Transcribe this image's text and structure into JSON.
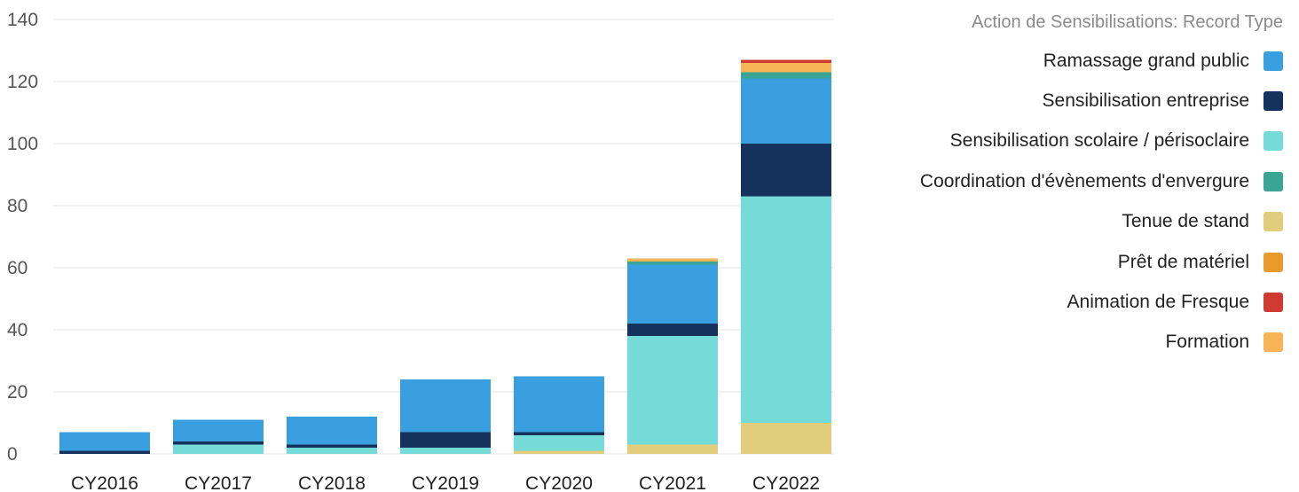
{
  "chart_data": {
    "type": "bar",
    "stacked": true,
    "legend_title": "Action de Sensibilisations: Record Type",
    "legend_position": "right",
    "grid": true,
    "ylim": [
      0,
      140
    ],
    "yticks": [
      0,
      20,
      40,
      60,
      80,
      100,
      120,
      140
    ],
    "categories": [
      "CY2016",
      "CY2017",
      "CY2018",
      "CY2019",
      "CY2020",
      "CY2021",
      "CY2022"
    ],
    "series": [
      {
        "name": "Tenue de stand",
        "color": "#e2cd7d",
        "values": [
          0,
          0,
          0,
          0,
          1,
          3,
          10
        ]
      },
      {
        "name": "Sensibilisation scolaire / périsoclaire",
        "color": "#75dbd8",
        "values": [
          0,
          3,
          2,
          2,
          5,
          35,
          73
        ]
      },
      {
        "name": "Sensibilisation entreprise",
        "color": "#15325c",
        "values": [
          1,
          1,
          1,
          5,
          1,
          4,
          17
        ]
      },
      {
        "name": "Ramassage grand public",
        "color": "#3a9fde",
        "values": [
          6,
          7,
          9,
          17,
          18,
          19,
          21
        ]
      },
      {
        "name": "Coordination d'évènements d'envergure",
        "color": "#3aa594",
        "values": [
          0,
          0,
          0,
          0,
          0,
          1,
          2
        ]
      },
      {
        "name": "Prêt de matériel",
        "color": "#e89a2d",
        "values": [
          0,
          0,
          0,
          0,
          0,
          0,
          0
        ]
      },
      {
        "name": "Formation",
        "color": "#f7b558",
        "values": [
          0,
          0,
          0,
          0,
          0,
          1,
          3
        ]
      },
      {
        "name": "Animation de Fresque",
        "color": "#cf3a33",
        "values": [
          0,
          0,
          0,
          0,
          0,
          0,
          1
        ]
      }
    ],
    "legend_order": [
      "Ramassage grand public",
      "Sensibilisation entreprise",
      "Sensibilisation scolaire / périsoclaire",
      "Coordination d'évènements d'envergure",
      "Tenue de stand",
      "Prêt de matériel",
      "Animation de Fresque",
      "Formation"
    ]
  }
}
